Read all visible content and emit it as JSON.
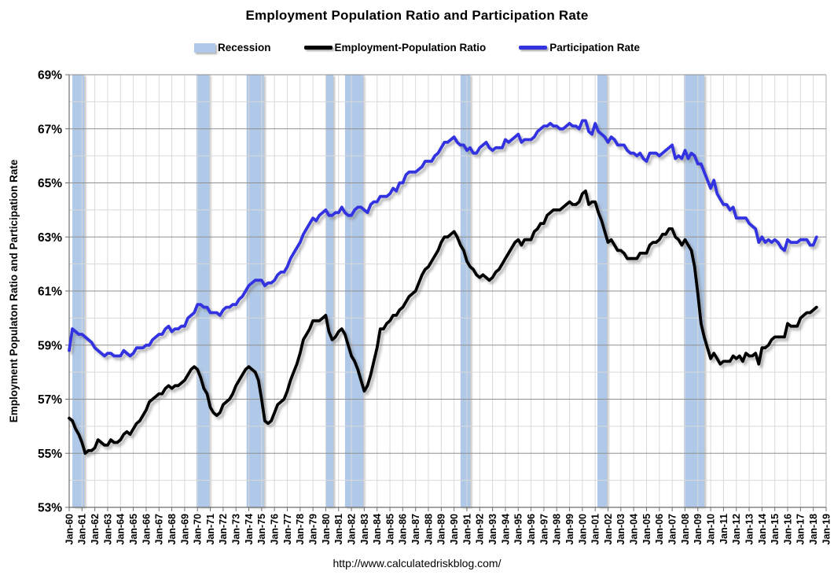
{
  "title": "Employment Population Ratio and Participation Rate",
  "footer": "http://www.calculatedriskblog.com/",
  "legend": [
    {
      "label": "Recession",
      "type": "box",
      "color": "#b0c9e8"
    },
    {
      "label": "Employment-Population Ratio",
      "type": "line",
      "color": "#000000"
    },
    {
      "label": "Participation Rate",
      "type": "line",
      "color": "#3333e0"
    }
  ],
  "colors": {
    "recession_band": "#b0c9e8",
    "epop_line": "#000000",
    "participation_line": "#3333e0",
    "grid_minor": "#d9d9d9",
    "grid_major": "#8f8f8f",
    "axis": "#6e6e6e",
    "background": "#ffffff"
  },
  "chart_data": {
    "type": "line",
    "title": "Employment Population Ratio and Participation Rate",
    "xlabel": "",
    "ylabel": "Employment Populaton Ratio and Participation Rate",
    "ylim": [
      53,
      69
    ],
    "y_tick_step": 2,
    "y_tick_labels": [
      "69%",
      "67%",
      "65%",
      "63%",
      "61%",
      "59%",
      "57%",
      "55%",
      "53%"
    ],
    "x_axis_start_year": 1960,
    "x_axis_end_year": 2019,
    "x_tick_labels": [
      "Jan-60",
      "Jan-61",
      "Jan-62",
      "Jan-63",
      "Jan-64",
      "Jan-65",
      "Jan-66",
      "Jan-67",
      "Jan-68",
      "Jan-69",
      "Jan-70",
      "Jan-71",
      "Jan-72",
      "Jan-73",
      "Jan-74",
      "Jan-75",
      "Jan-76",
      "Jan-77",
      "Jan-78",
      "Jan-79",
      "Jan-80",
      "Jan-81",
      "Jan-82",
      "Jan-83",
      "Jan-84",
      "Jan-85",
      "Jan-86",
      "Jan-87",
      "Jan-88",
      "Jan-89",
      "Jan-90",
      "Jan-91",
      "Jan-92",
      "Jan-93",
      "Jan-94",
      "Jan-95",
      "Jan-96",
      "Jan-97",
      "Jan-98",
      "Jan-99",
      "Jan-00",
      "Jan-01",
      "Jan-02",
      "Jan-03",
      "Jan-04",
      "Jan-05",
      "Jan-06",
      "Jan-07",
      "Jan-08",
      "Jan-09",
      "Jan-10",
      "Jan-11",
      "Jan-12",
      "Jan-13",
      "Jan-14",
      "Jan-15",
      "Jan-16",
      "Jan-17",
      "Jan-18",
      "Jan-19"
    ],
    "grid": {
      "vertical": "every year, light",
      "horizontal_minor": "every 1%, light",
      "horizontal_major": "every 2% at labeled values, dark"
    },
    "legend_position": "top",
    "x_start_year": 1960.0,
    "x_step_years": 0.25,
    "x_end_year": 2018.25,
    "recessions": [
      [
        1960.25,
        1961.17
      ],
      [
        1969.92,
        1970.92
      ],
      [
        1973.83,
        1975.17
      ],
      [
        1980.0,
        1980.58
      ],
      [
        1981.5,
        1982.92
      ],
      [
        1990.5,
        1991.25
      ],
      [
        2001.17,
        2001.92
      ],
      [
        2007.92,
        2009.5
      ]
    ],
    "series": [
      {
        "name": "Employment-Population Ratio",
        "color": "#000000",
        "values": [
          56.3,
          56.2,
          55.9,
          55.7,
          55.4,
          55.0,
          55.1,
          55.1,
          55.2,
          55.5,
          55.4,
          55.3,
          55.3,
          55.5,
          55.4,
          55.4,
          55.5,
          55.7,
          55.8,
          55.7,
          55.9,
          56.1,
          56.2,
          56.4,
          56.6,
          56.9,
          57.0,
          57.1,
          57.2,
          57.2,
          57.4,
          57.5,
          57.4,
          57.5,
          57.5,
          57.6,
          57.7,
          57.9,
          58.1,
          58.2,
          58.1,
          57.8,
          57.4,
          57.2,
          56.7,
          56.5,
          56.4,
          56.5,
          56.8,
          56.9,
          57.0,
          57.2,
          57.5,
          57.7,
          57.9,
          58.1,
          58.2,
          58.1,
          58.0,
          57.7,
          57.0,
          56.2,
          56.1,
          56.2,
          56.5,
          56.8,
          56.9,
          57.0,
          57.3,
          57.7,
          58.0,
          58.3,
          58.7,
          59.2,
          59.4,
          59.6,
          59.9,
          59.9,
          59.9,
          60.0,
          60.1,
          59.5,
          59.2,
          59.3,
          59.5,
          59.6,
          59.4,
          59.0,
          58.6,
          58.4,
          58.1,
          57.7,
          57.3,
          57.5,
          57.9,
          58.4,
          58.9,
          59.6,
          59.6,
          59.8,
          59.9,
          60.1,
          60.1,
          60.3,
          60.4,
          60.6,
          60.8,
          60.9,
          61.0,
          61.3,
          61.6,
          61.8,
          61.9,
          62.1,
          62.3,
          62.5,
          62.8,
          63.0,
          63.0,
          63.1,
          63.2,
          63.0,
          62.7,
          62.5,
          62.1,
          61.9,
          61.8,
          61.6,
          61.5,
          61.6,
          61.5,
          61.4,
          61.5,
          61.7,
          61.8,
          62.0,
          62.2,
          62.4,
          62.6,
          62.8,
          62.9,
          62.7,
          62.9,
          62.9,
          62.9,
          63.2,
          63.3,
          63.5,
          63.5,
          63.8,
          63.9,
          64.0,
          64.0,
          64.0,
          64.1,
          64.2,
          64.3,
          64.2,
          64.2,
          64.3,
          64.6,
          64.7,
          64.2,
          64.3,
          64.3,
          63.9,
          63.6,
          63.2,
          62.8,
          62.9,
          62.7,
          62.5,
          62.5,
          62.4,
          62.2,
          62.2,
          62.2,
          62.2,
          62.4,
          62.4,
          62.4,
          62.7,
          62.8,
          62.8,
          62.9,
          63.1,
          63.1,
          63.3,
          63.3,
          63.0,
          62.9,
          62.7,
          62.9,
          62.7,
          62.5,
          61.9,
          60.9,
          59.8,
          59.3,
          58.9,
          58.5,
          58.7,
          58.5,
          58.3,
          58.4,
          58.4,
          58.4,
          58.6,
          58.5,
          58.6,
          58.4,
          58.7,
          58.6,
          58.6,
          58.7,
          58.3,
          58.9,
          58.9,
          59.0,
          59.2,
          59.3,
          59.3,
          59.3,
          59.3,
          59.8,
          59.7,
          59.7,
          59.7,
          60.0,
          60.1,
          60.2,
          60.2,
          60.3,
          60.4
        ]
      },
      {
        "name": "Participation Rate",
        "color": "#3333e0",
        "values": [
          58.8,
          59.6,
          59.5,
          59.4,
          59.4,
          59.3,
          59.2,
          59.1,
          58.9,
          58.8,
          58.7,
          58.6,
          58.7,
          58.7,
          58.6,
          58.6,
          58.6,
          58.8,
          58.7,
          58.6,
          58.7,
          58.9,
          58.9,
          58.9,
          59.0,
          59.0,
          59.2,
          59.3,
          59.4,
          59.4,
          59.6,
          59.7,
          59.5,
          59.6,
          59.6,
          59.7,
          59.7,
          60.0,
          60.1,
          60.2,
          60.5,
          60.5,
          60.4,
          60.4,
          60.2,
          60.2,
          60.2,
          60.1,
          60.3,
          60.4,
          60.4,
          60.5,
          60.5,
          60.7,
          60.8,
          61.0,
          61.2,
          61.3,
          61.4,
          61.4,
          61.4,
          61.2,
          61.3,
          61.3,
          61.4,
          61.6,
          61.7,
          61.7,
          61.9,
          62.2,
          62.4,
          62.6,
          62.8,
          63.1,
          63.3,
          63.5,
          63.7,
          63.6,
          63.8,
          63.9,
          64.0,
          63.8,
          63.8,
          63.9,
          63.9,
          64.1,
          63.9,
          63.8,
          63.8,
          64.0,
          64.1,
          64.1,
          64.0,
          63.9,
          64.2,
          64.3,
          64.3,
          64.5,
          64.5,
          64.5,
          64.6,
          64.8,
          64.7,
          65.0,
          65.0,
          65.3,
          65.4,
          65.4,
          65.4,
          65.5,
          65.6,
          65.8,
          65.8,
          65.8,
          66.0,
          66.1,
          66.3,
          66.5,
          66.5,
          66.6,
          66.7,
          66.5,
          66.4,
          66.4,
          66.2,
          66.3,
          66.1,
          66.1,
          66.3,
          66.4,
          66.5,
          66.3,
          66.2,
          66.3,
          66.3,
          66.3,
          66.6,
          66.5,
          66.6,
          66.7,
          66.8,
          66.5,
          66.6,
          66.6,
          66.6,
          66.7,
          66.9,
          67.0,
          67.1,
          67.1,
          67.2,
          67.1,
          67.1,
          67.0,
          67.0,
          67.1,
          67.2,
          67.1,
          67.1,
          67.0,
          67.3,
          67.3,
          66.9,
          66.8,
          67.2,
          66.9,
          66.8,
          66.7,
          66.5,
          66.7,
          66.6,
          66.4,
          66.4,
          66.4,
          66.2,
          66.1,
          66.1,
          66.0,
          66.1,
          65.9,
          65.8,
          66.1,
          66.1,
          66.1,
          66.0,
          66.1,
          66.2,
          66.3,
          66.4,
          65.9,
          66.0,
          65.9,
          66.2,
          65.9,
          66.1,
          66.0,
          65.7,
          65.7,
          65.4,
          65.1,
          64.8,
          65.1,
          64.6,
          64.4,
          64.2,
          64.2,
          64.0,
          64.1,
          63.7,
          63.7,
          63.7,
          63.7,
          63.5,
          63.4,
          63.3,
          62.8,
          63.0,
          62.8,
          62.9,
          62.8,
          62.9,
          62.8,
          62.6,
          62.5,
          62.9,
          62.8,
          62.8,
          62.8,
          62.9,
          62.9,
          62.9,
          62.7,
          62.7,
          63.0
        ]
      }
    ]
  }
}
